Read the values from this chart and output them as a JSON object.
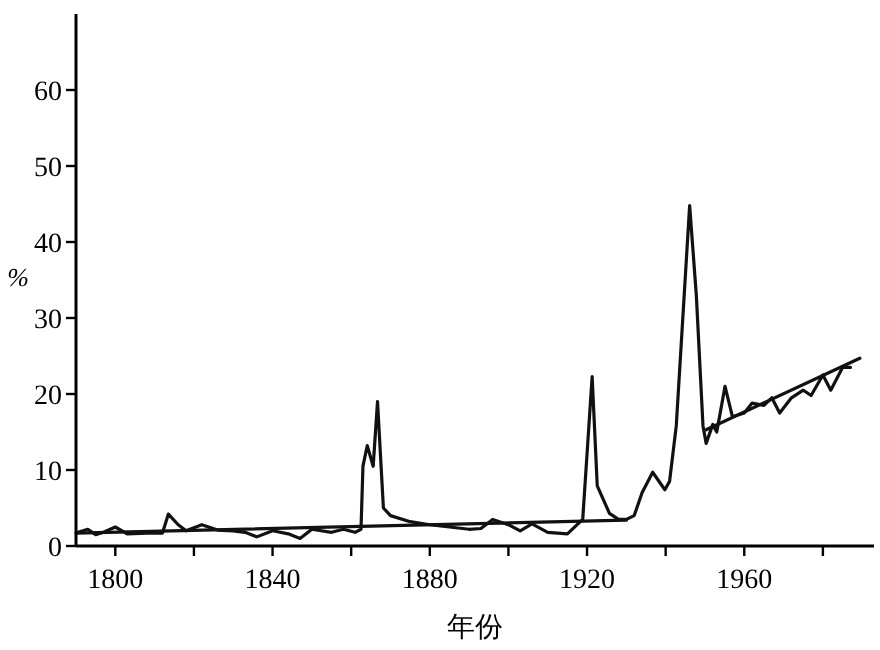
{
  "chart_data": {
    "type": "line",
    "xlabel": "年份",
    "ylabel": "%",
    "xlim": [
      1790,
      1993
    ],
    "ylim": [
      0,
      70
    ],
    "xticks": [
      1800,
      {
        "value": 1820,
        "label": null
      },
      1840,
      {
        "value": 1860,
        "label": null
      },
      1880,
      {
        "value": 1900,
        "label": null
      },
      1920,
      {
        "value": 1940,
        "label": null
      },
      1960,
      {
        "value": 1980,
        "label": null
      }
    ],
    "yticks": [
      0,
      10,
      20,
      30,
      40,
      50,
      60
    ],
    "grid": false,
    "marker": "none",
    "line_style": "solid",
    "series": [
      {
        "color": "#111111",
        "x": [
          1790.5,
          1793,
          1795,
          1797,
          1800,
          1803,
          1808,
          1812,
          1813.5,
          1816,
          1818,
          1822,
          1826,
          1830,
          1833,
          1836,
          1840,
          1844,
          1847,
          1850,
          1855,
          1858,
          1861,
          1862.5,
          1863,
          1864.1,
          1865.6,
          1866.7,
          1868.2,
          1870,
          1875,
          1880,
          1885,
          1890,
          1893,
          1896,
          1900,
          1903,
          1906,
          1910,
          1915,
          1918.9,
          1921.3,
          1922.6,
          1925.7,
          1928,
          1930,
          1932,
          1934,
          1936.7,
          1939.8,
          1941,
          1942.7,
          1946.1,
          1947.8,
          1949.5,
          1950.3,
          1952,
          1953,
          1955.1,
          1957,
          1960,
          1962,
          1965,
          1967,
          1969,
          1972,
          1975,
          1977,
          1980,
          1982,
          1985,
          1987
        ],
        "values": [
          1.8,
          2.2,
          1.5,
          1.8,
          2.5,
          1.6,
          1.7,
          1.7,
          4.2,
          2.8,
          2.0,
          2.8,
          2.1,
          2.0,
          1.8,
          1.2,
          2.0,
          1.6,
          1.0,
          2.2,
          1.8,
          2.2,
          1.8,
          2.2,
          10.5,
          13.2,
          10.5,
          19.0,
          5.0,
          4.0,
          3.2,
          2.8,
          2.5,
          2.2,
          2.3,
          3.5,
          2.8,
          2.0,
          2.9,
          1.8,
          1.6,
          3.5,
          22.3,
          7.9,
          4.3,
          3.5,
          3.5,
          4.0,
          7.0,
          9.7,
          7.4,
          8.5,
          15.8,
          44.8,
          33.0,
          15.8,
          13.5,
          16.0,
          15.0,
          21.0,
          17.0,
          17.5,
          18.8,
          18.5,
          19.5,
          17.5,
          19.5,
          20.5,
          19.8,
          22.5,
          20.5,
          23.5,
          23.5
        ]
      },
      {
        "color": "#111111",
        "x": [
          1790,
          1930
        ],
        "values": [
          1.7,
          3.4
        ]
      },
      {
        "color": "#111111",
        "x": [
          1950.3,
          1989.4
        ],
        "values": [
          15.3,
          24.7
        ]
      }
    ]
  }
}
